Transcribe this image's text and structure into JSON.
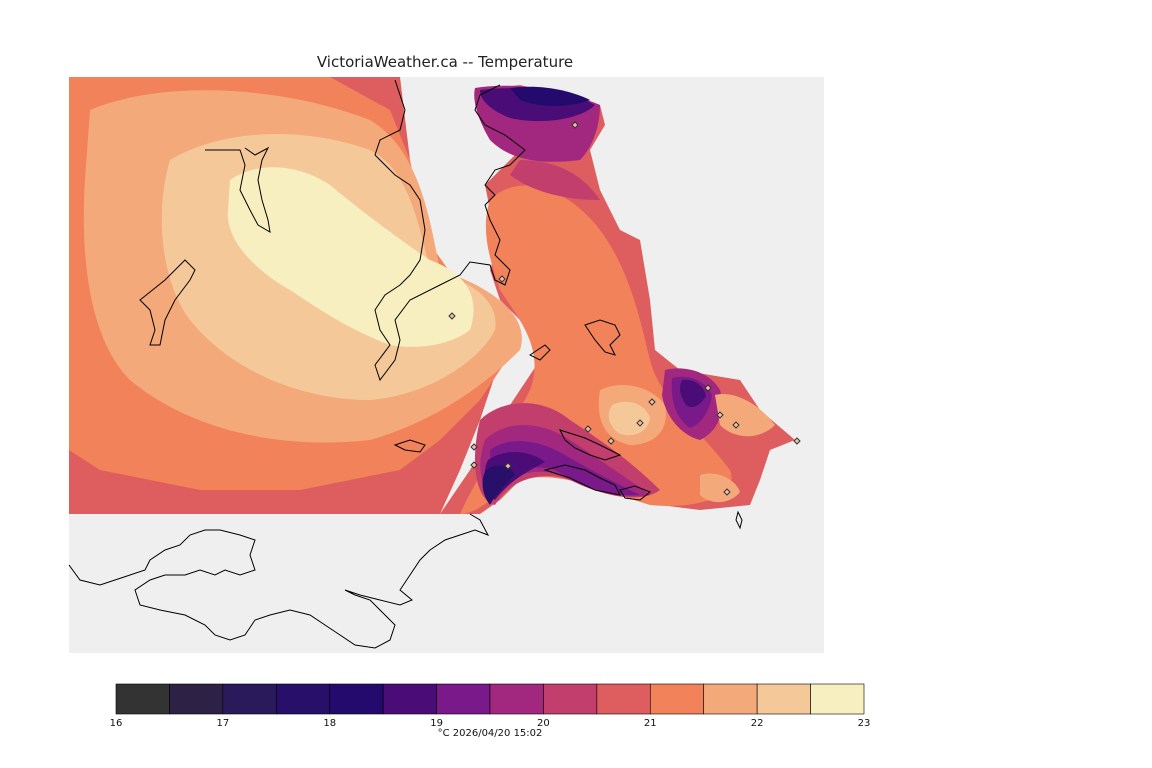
{
  "title": "VictoriaWeather.ca -- Temperature",
  "footer": "°C 2026/04/20 15:02",
  "colorbar": {
    "colors": [
      "#333333",
      "#2e2146",
      "#2a1a5c",
      "#270f6a",
      "#240a6d",
      "#4a0d78",
      "#7a1a8a",
      "#a2287f",
      "#c23f6d",
      "#de5d5e",
      "#f2825a",
      "#f4a97b",
      "#f5c89a",
      "#f7efc0"
    ],
    "ticks": [
      "16",
      "17",
      "18",
      "19",
      "20",
      "21",
      "22",
      "23"
    ]
  },
  "colors": {
    "background": "#efefef",
    "coast": "#000000",
    "station": "#f0c0a8"
  }
}
